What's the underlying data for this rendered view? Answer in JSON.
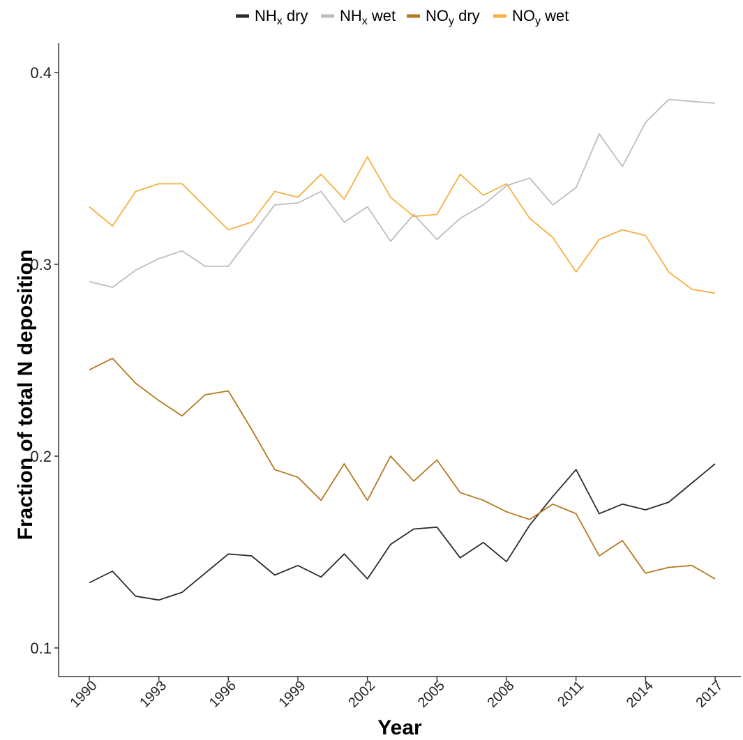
{
  "chart_data": {
    "type": "line",
    "title": "",
    "xlabel": "Year",
    "ylabel": "Fraction of total N deposition",
    "xlim": [
      1990,
      2017
    ],
    "ylim": [
      0.1,
      0.4
    ],
    "x_ticks": [
      1990,
      1993,
      1996,
      1999,
      2002,
      2005,
      2008,
      2011,
      2014,
      2017
    ],
    "y_ticks": [
      0.1,
      0.2,
      0.3,
      0.4
    ],
    "y_tick_labels": [
      "0.1",
      "0.2",
      "0.3",
      "0.4"
    ],
    "grid": false,
    "legend_position": "top",
    "x": [
      1990,
      1991,
      1992,
      1993,
      1994,
      1995,
      1996,
      1997,
      1998,
      1999,
      2000,
      2001,
      2002,
      2003,
      2004,
      2005,
      2006,
      2007,
      2008,
      2009,
      2010,
      2011,
      2012,
      2013,
      2014,
      2015,
      2016,
      2017
    ],
    "series": [
      {
        "name": "NH_x dry",
        "legend_base": "NH",
        "legend_sub": "x",
        "legend_suffix": " dry",
        "color": "#2b2b2b",
        "values": [
          0.134,
          0.14,
          0.127,
          0.125,
          0.129,
          0.139,
          0.149,
          0.148,
          0.138,
          0.143,
          0.137,
          0.149,
          0.136,
          0.154,
          0.162,
          0.163,
          0.147,
          0.155,
          0.145,
          0.164,
          0.179,
          0.193,
          0.17,
          0.175,
          0.172,
          0.176,
          0.186,
          0.196
        ]
      },
      {
        "name": "NH_x wet",
        "legend_base": "NH",
        "legend_sub": "x",
        "legend_suffix": " wet",
        "color": "#bdbdbd",
        "values": [
          0.291,
          0.288,
          0.297,
          0.303,
          0.307,
          0.299,
          0.299,
          0.315,
          0.331,
          0.332,
          0.338,
          0.322,
          0.33,
          0.312,
          0.326,
          0.313,
          0.324,
          0.331,
          0.341,
          0.345,
          0.331,
          0.34,
          0.368,
          0.351,
          0.374,
          0.386,
          0.385,
          0.384
        ]
      },
      {
        "name": "NO_y dry",
        "legend_base": "NO",
        "legend_sub": "y",
        "legend_suffix": " dry",
        "color": "#b5791f",
        "values": [
          0.245,
          0.251,
          0.238,
          0.229,
          0.221,
          0.232,
          0.234,
          0.214,
          0.193,
          0.189,
          0.177,
          0.196,
          0.177,
          0.2,
          0.187,
          0.198,
          0.181,
          0.177,
          0.171,
          0.167,
          0.175,
          0.17,
          0.148,
          0.156,
          0.139,
          0.142,
          0.143,
          0.136
        ]
      },
      {
        "name": "NO_y wet",
        "legend_base": "NO",
        "legend_sub": "y",
        "legend_suffix": " wet",
        "color": "#f5b041",
        "values": [
          0.33,
          0.32,
          0.338,
          0.342,
          0.342,
          0.33,
          0.318,
          0.322,
          0.338,
          0.335,
          0.347,
          0.334,
          0.356,
          0.335,
          0.325,
          0.326,
          0.347,
          0.336,
          0.342,
          0.324,
          0.314,
          0.296,
          0.313,
          0.318,
          0.315,
          0.296,
          0.287,
          0.285
        ]
      }
    ]
  }
}
